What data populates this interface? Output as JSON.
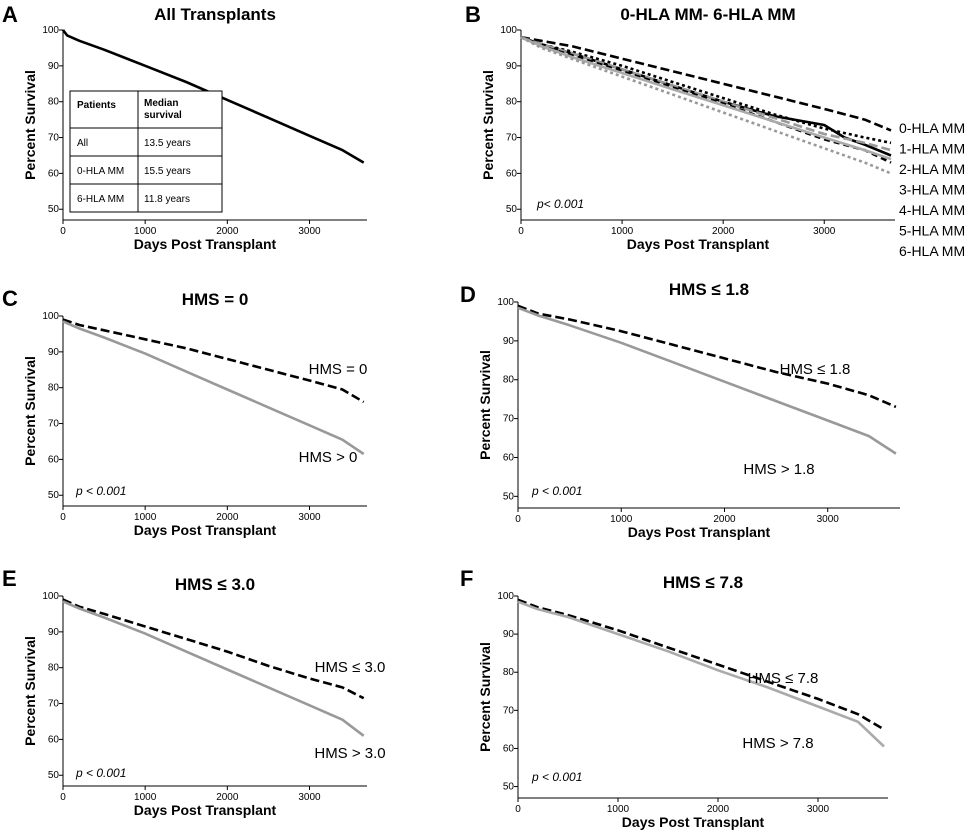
{
  "chart_data": [
    {
      "panel": "A",
      "type": "line",
      "title": "All Transplants",
      "xlabel": "Days Post Transplant",
      "ylabel": "Percent Survival",
      "xlim": [
        0,
        3700
      ],
      "ylim": [
        47,
        100
      ],
      "xticks": [
        0,
        1000,
        2000,
        3000
      ],
      "yticks": [
        50,
        60,
        70,
        80,
        90,
        100
      ],
      "series": [
        {
          "name": "All",
          "color": "#000000",
          "dash": "solid",
          "x": [
            0,
            50,
            200,
            500,
            1000,
            1500,
            2000,
            2500,
            3000,
            3400,
            3660
          ],
          "y": [
            100,
            98.5,
            97,
            94.5,
            90,
            85.5,
            80.5,
            75.5,
            70.5,
            66.5,
            63
          ]
        }
      ],
      "table": {
        "headers": [
          "Patients",
          "Median survival"
        ],
        "rows": [
          [
            "All",
            "13.5 years"
          ],
          [
            "0-HLA MM",
            "15.5 years"
          ],
          [
            "6-HLA MM",
            "11.8 years"
          ]
        ]
      }
    },
    {
      "panel": "B",
      "type": "line",
      "title": "0-HLA MM- 6-HLA MM",
      "xlabel": "Days Post Transplant",
      "ylabel": "Percent Survival",
      "xlim": [
        0,
        3700
      ],
      "ylim": [
        47,
        100
      ],
      "xticks": [
        0,
        1000,
        2000,
        3000
      ],
      "yticks": [
        50,
        60,
        70,
        80,
        90,
        100
      ],
      "p_value": "p< 0.001",
      "legend": [
        "0-HLA MM",
        "1-HLA MM",
        "2-HLA MM",
        "3-HLA MM",
        "4-HLA MM",
        "5-HLA MM",
        "6-HLA MM"
      ],
      "series": [
        {
          "name": "0-HLA MM",
          "color": "#000000",
          "dash": "long",
          "x": [
            0,
            200,
            500,
            1000,
            1500,
            2000,
            2500,
            3000,
            3400,
            3660
          ],
          "y": [
            98,
            97,
            95.5,
            92,
            88.5,
            85,
            81.5,
            78,
            75,
            72
          ]
        },
        {
          "name": "1-HLA MM",
          "color": "#000000",
          "dash": "dot",
          "x": [
            0,
            200,
            500,
            1000,
            1500,
            2000,
            2500,
            3000,
            3400,
            3660
          ],
          "y": [
            98,
            96,
            94,
            90,
            85.5,
            81,
            76.5,
            72.5,
            70,
            68.5
          ]
        },
        {
          "name": "2-HLA MM",
          "color": "#000000",
          "dash": "solid",
          "x": [
            0,
            200,
            500,
            1000,
            1500,
            2000,
            2500,
            3000,
            3200,
            3400,
            3660
          ],
          "y": [
            98,
            96,
            93.5,
            89,
            84.5,
            80,
            76,
            73.5,
            70,
            68,
            65
          ]
        },
        {
          "name": "3-HLA MM",
          "color": "#999999",
          "dash": "long",
          "x": [
            0,
            200,
            500,
            1000,
            1500,
            2000,
            2500,
            3000,
            3400,
            3660
          ],
          "y": [
            98,
            96,
            93.5,
            89,
            84.5,
            80,
            75.5,
            71,
            68.5,
            66.5
          ]
        },
        {
          "name": "4-HLA MM",
          "color": "#000000",
          "dash": "medium",
          "x": [
            0,
            200,
            500,
            1000,
            1500,
            2000,
            2500,
            3000,
            3400,
            3660
          ],
          "y": [
            98,
            95.5,
            93,
            88.5,
            84,
            79.5,
            74.5,
            69.5,
            66.5,
            63
          ]
        },
        {
          "name": "5-HLA MM",
          "color": "#aaaaaa",
          "dash": "solid",
          "x": [
            0,
            200,
            500,
            1000,
            1500,
            2000,
            2500,
            3000,
            3400,
            3660
          ],
          "y": [
            98,
            95.5,
            92.5,
            88,
            83.5,
            79,
            74.5,
            70,
            66.5,
            64
          ]
        },
        {
          "name": "6-HLA MM",
          "color": "#999999",
          "dash": "dot",
          "x": [
            0,
            200,
            500,
            1000,
            1500,
            2000,
            2500,
            3000,
            3400,
            3660
          ],
          "y": [
            98,
            95,
            92,
            87,
            82,
            77,
            72,
            67,
            63,
            60
          ]
        }
      ]
    },
    {
      "panel": "C",
      "type": "line",
      "title": "HMS = 0",
      "xlabel": "Days Post Transplant",
      "ylabel": "Percent Survival",
      "xlim": [
        0,
        3700
      ],
      "ylim": [
        47,
        100
      ],
      "xticks": [
        0,
        1000,
        2000,
        3000
      ],
      "yticks": [
        50,
        60,
        70,
        80,
        90,
        100
      ],
      "p_value": "p < 0.001",
      "series": [
        {
          "name": "HMS = 0",
          "label": "HMS = 0",
          "color": "#000000",
          "dash": "long",
          "x": [
            0,
            200,
            500,
            1000,
            1500,
            2000,
            2500,
            3000,
            3400,
            3660
          ],
          "y": [
            99,
            97.5,
            96,
            93.5,
            91,
            88,
            85,
            82,
            79.5,
            76
          ]
        },
        {
          "name": "HMS > 0",
          "label": "HMS > 0",
          "color": "#999999",
          "dash": "solid",
          "x": [
            0,
            200,
            500,
            1000,
            1500,
            2000,
            2500,
            3000,
            3400,
            3660
          ],
          "y": [
            98.5,
            96.5,
            94,
            89.5,
            84.5,
            79.5,
            74.5,
            69.5,
            65.5,
            61.5
          ]
        }
      ]
    },
    {
      "panel": "D",
      "type": "line",
      "title": "HMS ≤ 1.8",
      "xlabel": "Days Post Transplant",
      "ylabel": "Percent Survival",
      "xlim": [
        0,
        3700
      ],
      "ylim": [
        47,
        100
      ],
      "xticks": [
        0,
        1000,
        2000,
        3000
      ],
      "yticks": [
        50,
        60,
        70,
        80,
        90,
        100
      ],
      "p_value": "p < 0.001",
      "series": [
        {
          "name": "HMS ≤ 1.8",
          "label": "HMS ≤ 1.8",
          "color": "#000000",
          "dash": "long",
          "x": [
            0,
            200,
            500,
            1000,
            1500,
            2000,
            2500,
            3000,
            3400,
            3660
          ],
          "y": [
            99,
            97,
            95.5,
            92.5,
            89,
            85.5,
            82,
            79,
            76,
            73
          ]
        },
        {
          "name": "HMS > 1.8",
          "label": "HMS > 1.8",
          "color": "#999999",
          "dash": "solid",
          "x": [
            0,
            200,
            500,
            1000,
            1500,
            2000,
            2500,
            3000,
            3400,
            3660
          ],
          "y": [
            98.5,
            96.5,
            94,
            89.5,
            84.5,
            79.5,
            74.5,
            69.5,
            65.5,
            61
          ]
        }
      ]
    },
    {
      "panel": "E",
      "type": "line",
      "title": "HMS ≤ 3.0",
      "xlabel": "Days Post Transplant",
      "ylabel": "Percent Survival",
      "xlim": [
        0,
        3700
      ],
      "ylim": [
        47,
        100
      ],
      "xticks": [
        0,
        1000,
        2000,
        3000
      ],
      "yticks": [
        50,
        60,
        70,
        80,
        90,
        100
      ],
      "p_value": "p < 0.001",
      "series": [
        {
          "name": "HMS ≤ 3.0",
          "label": "HMS ≤ 3.0",
          "color": "#000000",
          "dash": "long",
          "x": [
            0,
            200,
            500,
            1000,
            1500,
            2000,
            2500,
            3000,
            3400,
            3660
          ],
          "y": [
            99,
            97,
            95,
            91.5,
            88,
            84.5,
            80.5,
            77,
            74.5,
            71.5
          ]
        },
        {
          "name": "HMS > 3.0",
          "label": "HMS > 3.0",
          "color": "#999999",
          "dash": "solid",
          "x": [
            0,
            200,
            500,
            1000,
            1500,
            2000,
            2500,
            3000,
            3400,
            3660
          ],
          "y": [
            98.5,
            96.5,
            94,
            89.5,
            84.5,
            79.5,
            74.5,
            69.5,
            65.5,
            61
          ]
        }
      ]
    },
    {
      "panel": "F",
      "type": "line",
      "title": "HMS ≤ 7.8",
      "xlabel": "Days Post Transplant",
      "ylabel": "Percent Survival",
      "xlim": [
        0,
        3700
      ],
      "ylim": [
        47,
        100
      ],
      "xticks": [
        0,
        1000,
        2000,
        3000
      ],
      "yticks": [
        50,
        60,
        70,
        80,
        90,
        100
      ],
      "p_value": "p < 0.001",
      "series": [
        {
          "name": "HMS ≤ 7.8",
          "label": "HMS ≤ 7.8",
          "color": "#000000",
          "dash": "long",
          "x": [
            0,
            200,
            500,
            1000,
            1500,
            2000,
            2500,
            3000,
            3400,
            3660
          ],
          "y": [
            99,
            97,
            95,
            91,
            86.5,
            82,
            77.5,
            73,
            69,
            65
          ]
        },
        {
          "name": "HMS > 7.8",
          "label": "HMS > 7.8",
          "color": "#aaaaaa",
          "dash": "solid",
          "x": [
            0,
            200,
            500,
            1000,
            1500,
            2000,
            2500,
            3000,
            3400,
            3660
          ],
          "y": [
            98.5,
            96.5,
            94.5,
            90,
            85.5,
            80.5,
            76,
            71,
            67,
            60.5
          ]
        }
      ]
    }
  ]
}
